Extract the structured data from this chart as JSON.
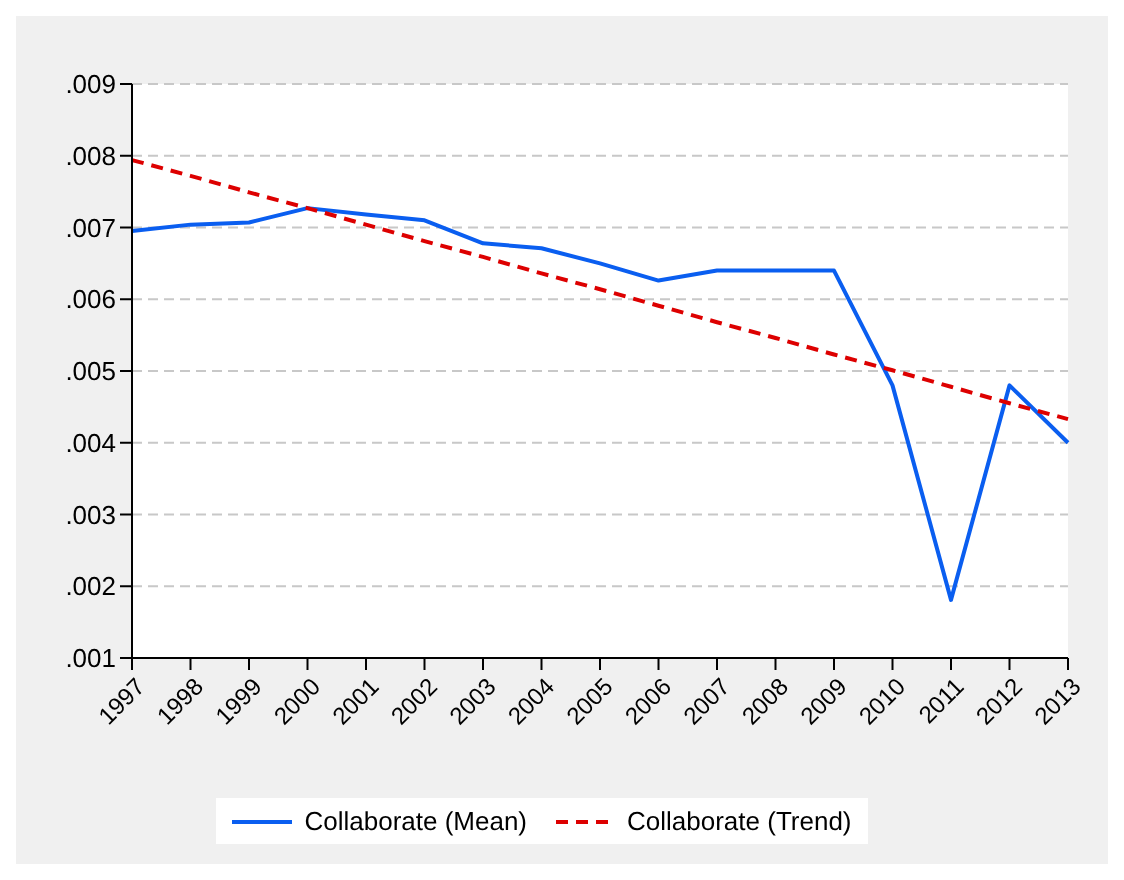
{
  "chart_data": {
    "type": "line",
    "categories": [
      "1997",
      "1998",
      "1999",
      "2000",
      "2001",
      "2002",
      "2003",
      "2004",
      "2005",
      "2006",
      "2007",
      "2008",
      "2009",
      "2010",
      "2011",
      "2012",
      "2013"
    ],
    "series": [
      {
        "name": "Collaborate (Mean)",
        "color": "#0a5ef0",
        "line_style": "solid",
        "values": [
          0.00695,
          0.00704,
          0.00707,
          0.00727,
          0.00718,
          0.0071,
          0.00678,
          0.00671,
          0.0065,
          0.00626,
          0.0064,
          0.0064,
          0.0064,
          0.0048,
          0.00181,
          0.0048,
          0.004
        ]
      },
      {
        "name": "Collaborate (Trend)",
        "color": "#dd0000",
        "line_style": "dashed",
        "values": [
          0.00794,
          0.00772,
          0.00749,
          0.00727,
          0.00704,
          0.00681,
          0.00659,
          0.00636,
          0.00614,
          0.00591,
          0.00568,
          0.00546,
          0.00523,
          0.00501,
          0.00478,
          0.00455,
          0.00433
        ]
      }
    ],
    "ylim": [
      0.001,
      0.009
    ],
    "yticks": [
      {
        "value": 0.001,
        "label": ".001"
      },
      {
        "value": 0.002,
        "label": ".002"
      },
      {
        "value": 0.003,
        "label": ".003"
      },
      {
        "value": 0.004,
        "label": ".004"
      },
      {
        "value": 0.005,
        "label": ".005"
      },
      {
        "value": 0.006,
        "label": ".006"
      },
      {
        "value": 0.007,
        "label": ".007"
      },
      {
        "value": 0.008,
        "label": ".008"
      },
      {
        "value": 0.009,
        "label": ".009"
      }
    ],
    "grid": "y",
    "legend": "bottom",
    "marker": "none"
  }
}
